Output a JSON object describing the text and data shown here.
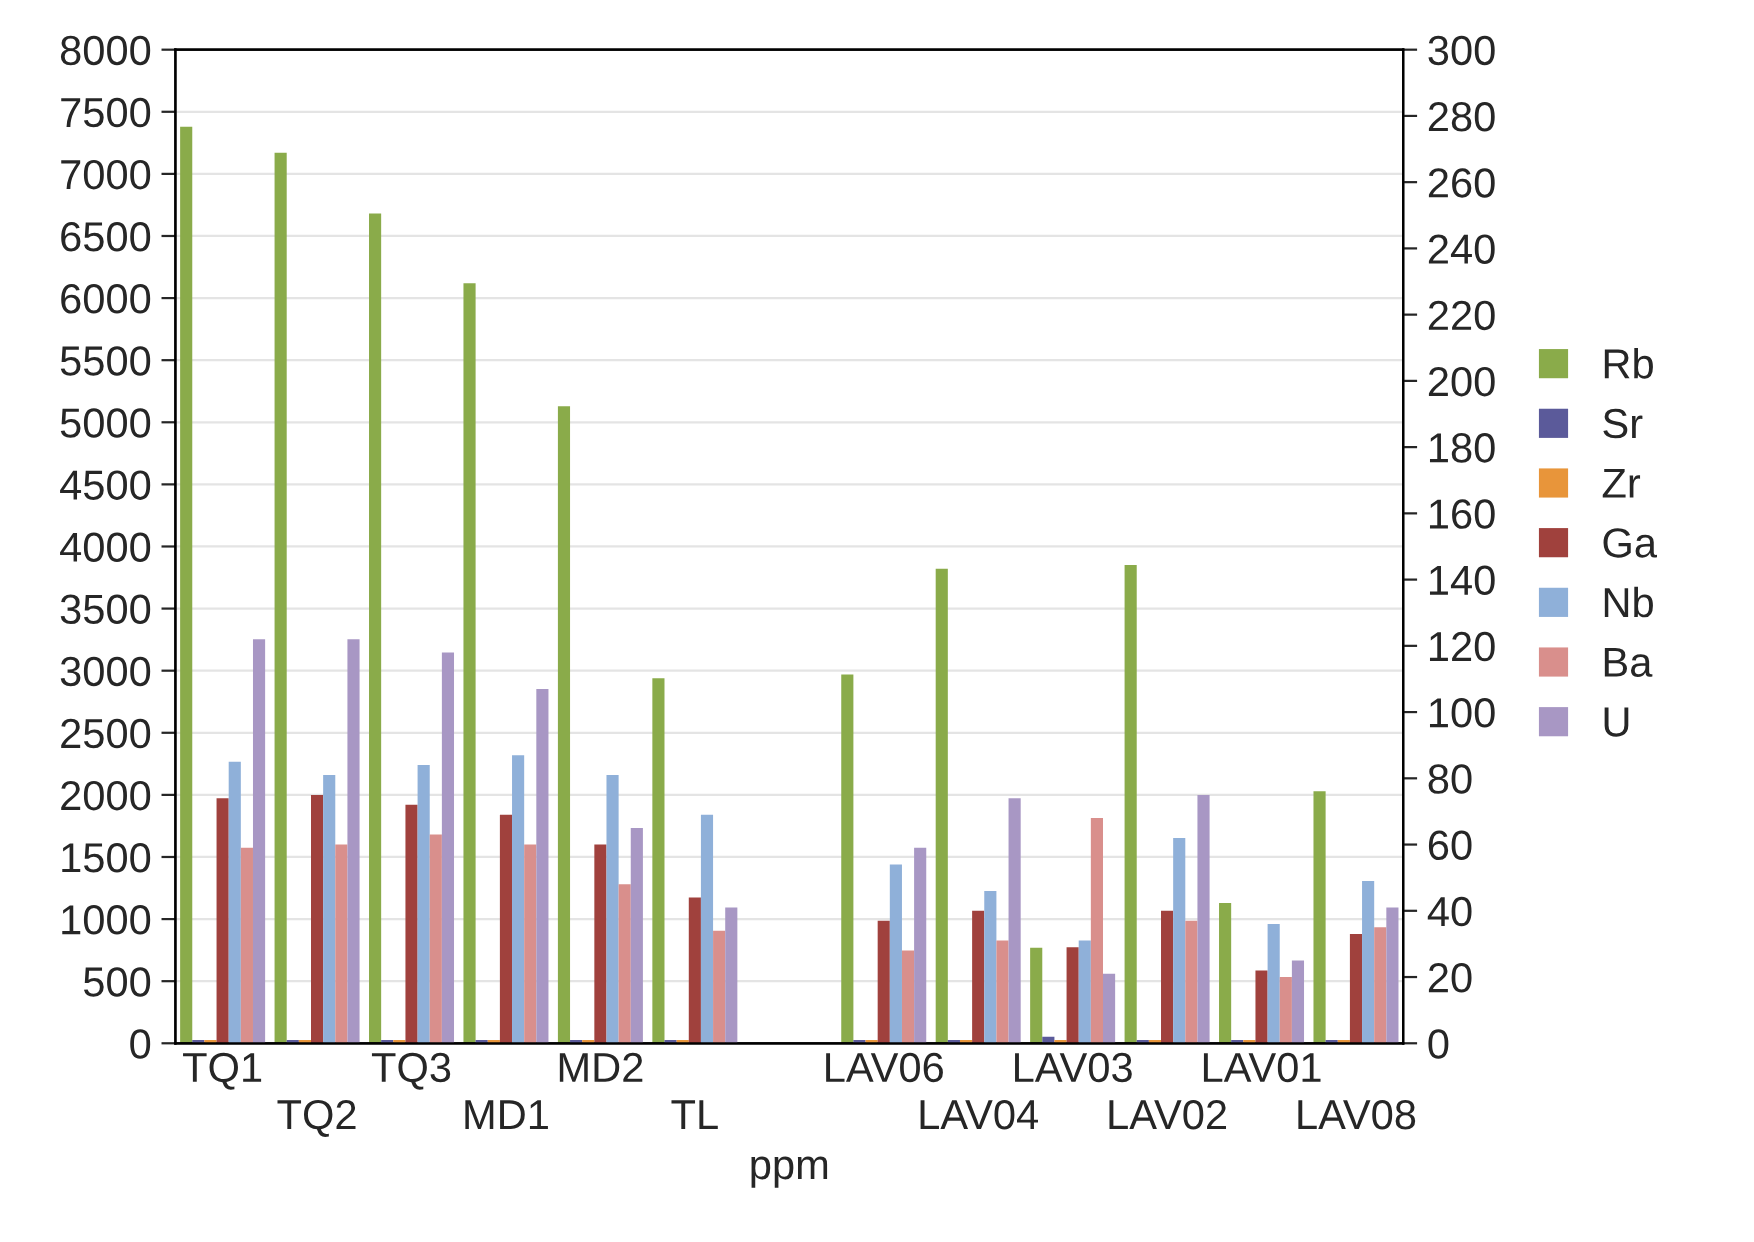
{
  "chart_data": {
    "type": "bar",
    "xlabel": "ppm",
    "categories": [
      "TQ1",
      "TQ2",
      "TQ3",
      "MD1",
      "MD2",
      "TL",
      null,
      "LAV06",
      "LAV04",
      "LAV03",
      "LAV02",
      "LAV01",
      "LAV08"
    ],
    "series": [
      {
        "name": "Rb",
        "color": "#8aab4a",
        "values": [
          7380,
          7170,
          6680,
          6120,
          5130,
          2940,
          null,
          2970,
          3820,
          770,
          3850,
          1130,
          2030
        ]
      },
      {
        "name": "Sr",
        "color": "#5b5a9a",
        "axis": "y2",
        "values": [
          1,
          1,
          1,
          1,
          1,
          1,
          null,
          1,
          1,
          2,
          1,
          1,
          1
        ]
      },
      {
        "name": "Zr",
        "color": "#e8953a",
        "axis": "y2",
        "values": [
          1,
          1,
          1,
          1,
          1,
          1,
          null,
          1,
          1,
          1,
          1,
          1,
          1
        ]
      },
      {
        "name": "Ga",
        "color": "#a0413d",
        "axis": "y2",
        "values": [
          74,
          75,
          72,
          69,
          60,
          44,
          null,
          37,
          40,
          29,
          40,
          22,
          33
        ]
      },
      {
        "name": "Nb",
        "color": "#8fb0d9",
        "axis": "y2",
        "values": [
          85,
          81,
          84,
          87,
          81,
          69,
          null,
          54,
          46,
          31,
          62,
          36,
          49
        ]
      },
      {
        "name": "Ba",
        "color": "#d98f8c",
        "axis": "y2",
        "values": [
          59,
          60,
          63,
          60,
          48,
          34,
          null,
          28,
          31,
          68,
          37,
          20,
          35
        ]
      },
      {
        "name": "U",
        "color": "#a897c4",
        "axis": "y2",
        "values": [
          122,
          122,
          118,
          107,
          65,
          41,
          null,
          59,
          74,
          21,
          75,
          25,
          41
        ]
      }
    ],
    "ylim": [
      0,
      8000
    ],
    "yticks": [
      0,
      500,
      1000,
      1500,
      2000,
      2500,
      3000,
      3500,
      4000,
      4500,
      5000,
      5500,
      6000,
      6500,
      7000,
      7500,
      8000
    ],
    "y2lim": [
      0,
      300
    ],
    "y2ticks": [
      0,
      20,
      40,
      60,
      80,
      100,
      120,
      140,
      160,
      180,
      200,
      220,
      240,
      260,
      280,
      300
    ],
    "grid": "y",
    "legend": "right"
  }
}
